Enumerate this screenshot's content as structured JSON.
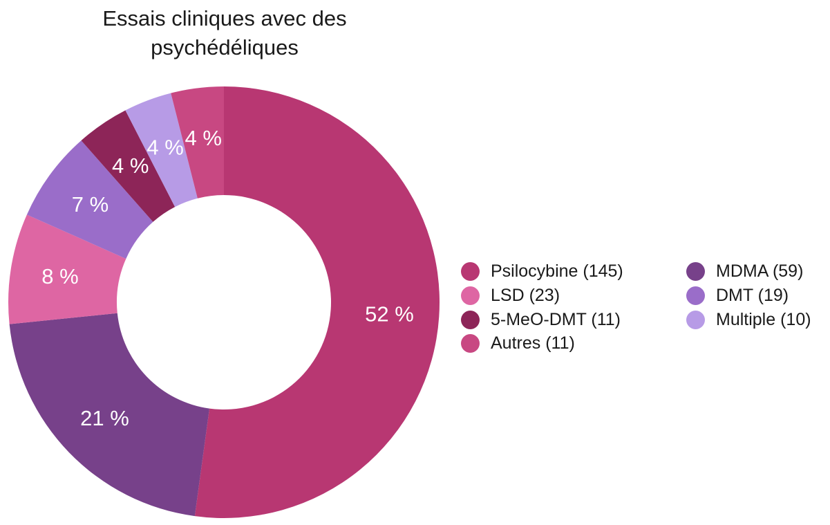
{
  "chart_data": {
    "type": "pie",
    "title": "Essais cliniques avec des\npsychédéliques",
    "slices": [
      {
        "name": "Psilocybine (145)",
        "value": 145,
        "label": "52 %",
        "color": "#b83772"
      },
      {
        "name": "MDMA (59)",
        "value": 59,
        "label": "21 %",
        "color": "#77418a"
      },
      {
        "name": "LSD (23)",
        "value": 23,
        "label": "8 %",
        "color": "#de66a3"
      },
      {
        "name": "DMT (19)",
        "value": 19,
        "label": "7 %",
        "color": "#9a6dc9"
      },
      {
        "name": "5-MeO-DMT (11)",
        "value": 11,
        "label": "4 %",
        "color": "#8d2558"
      },
      {
        "name": "Multiple (10)",
        "value": 10,
        "label": "4 %",
        "color": "#b79be6"
      },
      {
        "name": "Autres (11)",
        "value": 11,
        "label": "4 %",
        "color": "#c84882"
      }
    ],
    "legend": {
      "placement": "right",
      "columns": [
        [
          "Psilocybine (145)",
          "LSD (23)",
          "5-MeO-DMT (11)",
          "Autres (11)"
        ],
        [
          "MDMA (59)",
          "DMT (19)",
          "Multiple (10)"
        ]
      ]
    }
  }
}
